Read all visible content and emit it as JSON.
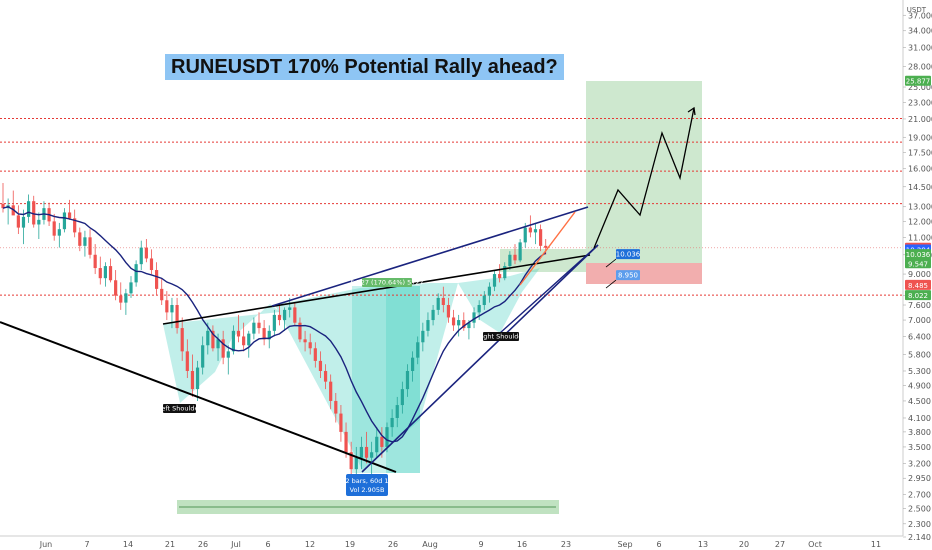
{
  "title": "RUNEUSDT 170% Potential Rally ahead?",
  "currency_label": "USDT",
  "colors": {
    "up": "#26a69a",
    "down": "#ef5350",
    "ma": "#1a237e",
    "trend": "#1a237e",
    "level_line": "#e53935",
    "pattern_fill": "#4dd0c4",
    "target_zone": "#a5d6a7",
    "stop_zone": "#ef9a9a",
    "title_bg": "#8ec5f4",
    "price_tag": "#1e6fd9"
  },
  "chart_data": {
    "type": "candlestick",
    "symbol": "RUNEUSDT",
    "y_scale": "log",
    "ylim": [
      2.14,
      40
    ],
    "y_ticks": [
      "37.000",
      "34.000",
      "31.000",
      "28.000",
      "25.000",
      "23.000",
      "21.000",
      "19.000",
      "17.500",
      "16.000",
      "14.500",
      "13.000",
      "12.000",
      "11.000",
      "10.000",
      "9.000",
      "8.000",
      "7.600",
      "7.000",
      "6.400",
      "5.800",
      "5.300",
      "4.900",
      "4.500",
      "4.100",
      "3.800",
      "3.500",
      "3.200",
      "2.950",
      "2.700",
      "2.500",
      "2.300",
      "2.140"
    ],
    "x_ticks": [
      "Jun",
      "7",
      "14",
      "21",
      "26",
      "Jul",
      "6",
      "12",
      "19",
      "26",
      "Aug",
      "9",
      "16",
      "23",
      "Sep",
      "6",
      "13",
      "20",
      "27",
      "Oct",
      "11"
    ],
    "horizontal_levels": [
      {
        "label": "21.050",
        "value": 21.05
      },
      {
        "label": "18.500",
        "value": 18.5
      },
      {
        "label": "15.793",
        "value": 15.793
      },
      {
        "label": "13.226",
        "value": 13.226
      },
      {
        "label": "8.022",
        "value": 8.022
      }
    ],
    "price_tags": [
      {
        "label": "25.877",
        "value": 25.877,
        "color": "#4caf50"
      },
      {
        "label": "10.392",
        "value": 10.392,
        "color": "#ef5350"
      },
      {
        "label": "10.294",
        "value": 10.294,
        "color": "#2962ff"
      },
      {
        "label": "10.036",
        "value": 10.036,
        "color": "#4caf50"
      },
      {
        "label": "9.547",
        "value": 9.547,
        "color": "#4caf50"
      },
      {
        "label": "8.485",
        "value": 8.485,
        "color": "#ef5350"
      },
      {
        "label": "8.022",
        "value": 8.022,
        "color": "#4caf50"
      }
    ],
    "chart_callouts": [
      {
        "label": "10.036",
        "value": 10.036
      },
      {
        "label": "8.950",
        "value": 8.95
      }
    ],
    "annotations": [
      {
        "text": "Left Shoulder",
        "value": 4.4
      },
      {
        "text": "Right Shoulder",
        "value": 6.6
      },
      {
        "text": "5.727 (170.64%) 5727",
        "value": 8.6
      },
      {
        "text": "182 bars, 60d 16h",
        "value": 2.95
      },
      {
        "text": "Vol 2.905B",
        "value": 2.8
      }
    ],
    "ohlc": [
      [
        13.2,
        14.8,
        12.6,
        12.9
      ],
      [
        12.9,
        13.6,
        11.8,
        13.1
      ],
      [
        13.1,
        14.2,
        12.5,
        12.4
      ],
      [
        12.4,
        13.1,
        11.2,
        11.6
      ],
      [
        11.6,
        12.8,
        10.6,
        12.3
      ],
      [
        12.3,
        13.9,
        11.9,
        13.4
      ],
      [
        13.4,
        13.8,
        11.6,
        11.8
      ],
      [
        11.8,
        12.6,
        10.9,
        12.1
      ],
      [
        12.1,
        13.4,
        11.8,
        12.9
      ],
      [
        12.9,
        13.3,
        11.7,
        12.0
      ],
      [
        12.0,
        12.5,
        10.8,
        11.1
      ],
      [
        11.1,
        11.9,
        10.4,
        11.5
      ],
      [
        11.5,
        12.9,
        11.3,
        12.6
      ],
      [
        12.6,
        13.5,
        12.1,
        12.2
      ],
      [
        12.2,
        12.8,
        11.0,
        11.3
      ],
      [
        11.3,
        11.6,
        10.2,
        10.5
      ],
      [
        10.5,
        11.4,
        9.9,
        11.0
      ],
      [
        11.0,
        11.5,
        9.8,
        10.0
      ],
      [
        10.0,
        10.6,
        9.0,
        9.3
      ],
      [
        9.3,
        9.9,
        8.5,
        8.8
      ],
      [
        8.8,
        9.6,
        8.4,
        9.4
      ],
      [
        9.4,
        9.8,
        8.6,
        8.7
      ],
      [
        8.7,
        9.2,
        7.8,
        8.0
      ],
      [
        8.0,
        8.6,
        7.4,
        7.7
      ],
      [
        7.7,
        8.3,
        7.2,
        8.1
      ],
      [
        8.1,
        8.9,
        7.9,
        8.6
      ],
      [
        8.6,
        9.7,
        8.4,
        9.5
      ],
      [
        9.5,
        10.8,
        9.2,
        10.4
      ],
      [
        10.4,
        10.9,
        9.6,
        9.8
      ],
      [
        9.8,
        10.3,
        9.0,
        9.2
      ],
      [
        9.2,
        9.6,
        8.0,
        8.3
      ],
      [
        8.3,
        8.8,
        7.6,
        7.8
      ],
      [
        7.8,
        8.2,
        7.0,
        7.3
      ],
      [
        7.3,
        7.9,
        6.7,
        7.6
      ],
      [
        7.6,
        7.9,
        6.5,
        6.7
      ],
      [
        6.7,
        7.1,
        5.6,
        5.9
      ],
      [
        5.9,
        6.3,
        5.1,
        5.3
      ],
      [
        5.3,
        5.8,
        4.6,
        4.8
      ],
      [
        4.8,
        5.6,
        4.5,
        5.4
      ],
      [
        5.4,
        6.4,
        5.2,
        6.1
      ],
      [
        6.1,
        6.9,
        5.8,
        6.6
      ],
      [
        6.6,
        6.8,
        5.9,
        6.0
      ],
      [
        6.0,
        6.5,
        5.6,
        6.3
      ],
      [
        6.3,
        6.6,
        5.5,
        5.7
      ],
      [
        5.7,
        6.1,
        5.2,
        5.9
      ],
      [
        5.9,
        6.8,
        5.8,
        6.6
      ],
      [
        6.6,
        7.2,
        6.2,
        6.4
      ],
      [
        6.4,
        6.9,
        5.9,
        6.1
      ],
      [
        6.1,
        6.6,
        5.7,
        6.5
      ],
      [
        6.5,
        7.1,
        6.3,
        6.9
      ],
      [
        6.9,
        7.3,
        6.5,
        6.7
      ],
      [
        6.7,
        7.0,
        6.1,
        6.3
      ],
      [
        6.3,
        6.8,
        6.0,
        6.6
      ],
      [
        6.6,
        7.4,
        6.4,
        7.2
      ],
      [
        7.2,
        7.6,
        6.8,
        7.0
      ],
      [
        7.0,
        7.5,
        6.6,
        7.4
      ],
      [
        7.4,
        7.9,
        7.1,
        7.5
      ],
      [
        7.5,
        7.7,
        6.8,
        6.9
      ],
      [
        6.9,
        7.1,
        6.2,
        6.3
      ],
      [
        6.3,
        6.6,
        5.9,
        6.2
      ],
      [
        6.2,
        6.5,
        5.8,
        6.0
      ],
      [
        6.0,
        6.2,
        5.4,
        5.6
      ],
      [
        5.6,
        5.9,
        5.1,
        5.3
      ],
      [
        5.3,
        5.5,
        4.8,
        5.0
      ],
      [
        5.0,
        5.2,
        4.3,
        4.5
      ],
      [
        4.5,
        4.7,
        4.0,
        4.2
      ],
      [
        4.2,
        4.4,
        3.6,
        3.8
      ],
      [
        3.8,
        4.0,
        3.3,
        3.4
      ],
      [
        3.4,
        3.6,
        3.0,
        3.1
      ],
      [
        3.1,
        3.5,
        2.95,
        3.3
      ],
      [
        3.3,
        3.7,
        3.1,
        3.5
      ],
      [
        3.5,
        3.8,
        3.2,
        3.3
      ],
      [
        3.3,
        3.6,
        3.0,
        3.4
      ],
      [
        3.4,
        3.9,
        3.3,
        3.7
      ],
      [
        3.7,
        3.9,
        3.3,
        3.5
      ],
      [
        3.5,
        4.0,
        3.4,
        3.9
      ],
      [
        3.9,
        4.3,
        3.7,
        4.1
      ],
      [
        4.1,
        4.6,
        3.9,
        4.4
      ],
      [
        4.4,
        5.0,
        4.2,
        4.8
      ],
      [
        4.8,
        5.5,
        4.6,
        5.3
      ],
      [
        5.3,
        5.9,
        5.0,
        5.7
      ],
      [
        5.7,
        6.4,
        5.5,
        6.2
      ],
      [
        6.2,
        6.9,
        5.9,
        6.6
      ],
      [
        6.6,
        7.3,
        6.4,
        7.0
      ],
      [
        7.0,
        7.6,
        6.8,
        7.4
      ],
      [
        7.4,
        8.1,
        7.2,
        7.9
      ],
      [
        7.9,
        8.4,
        7.3,
        7.6
      ],
      [
        7.6,
        7.9,
        6.9,
        7.1
      ],
      [
        7.1,
        7.4,
        6.6,
        6.8
      ],
      [
        6.8,
        7.2,
        6.4,
        7.0
      ],
      [
        7.0,
        7.3,
        6.6,
        6.7
      ],
      [
        6.7,
        7.0,
        6.3,
        6.9
      ],
      [
        6.9,
        7.5,
        6.7,
        7.3
      ],
      [
        7.3,
        7.8,
        7.0,
        7.6
      ],
      [
        7.6,
        8.2,
        7.4,
        8.0
      ],
      [
        8.0,
        8.6,
        7.7,
        8.4
      ],
      [
        8.4,
        9.2,
        8.2,
        9.0
      ],
      [
        9.0,
        9.5,
        8.6,
        8.8
      ],
      [
        8.8,
        9.6,
        8.7,
        9.4
      ],
      [
        9.4,
        10.2,
        9.2,
        10.0
      ],
      [
        10.0,
        10.6,
        9.5,
        9.7
      ],
      [
        9.7,
        10.9,
        9.6,
        10.7
      ],
      [
        10.7,
        11.9,
        10.4,
        11.6
      ],
      [
        11.6,
        12.4,
        11.0,
        11.3
      ],
      [
        11.3,
        11.9,
        10.6,
        11.5
      ],
      [
        11.5,
        11.8,
        10.2,
        10.5
      ],
      [
        10.5,
        10.9,
        10.0,
        10.39
      ]
    ]
  }
}
